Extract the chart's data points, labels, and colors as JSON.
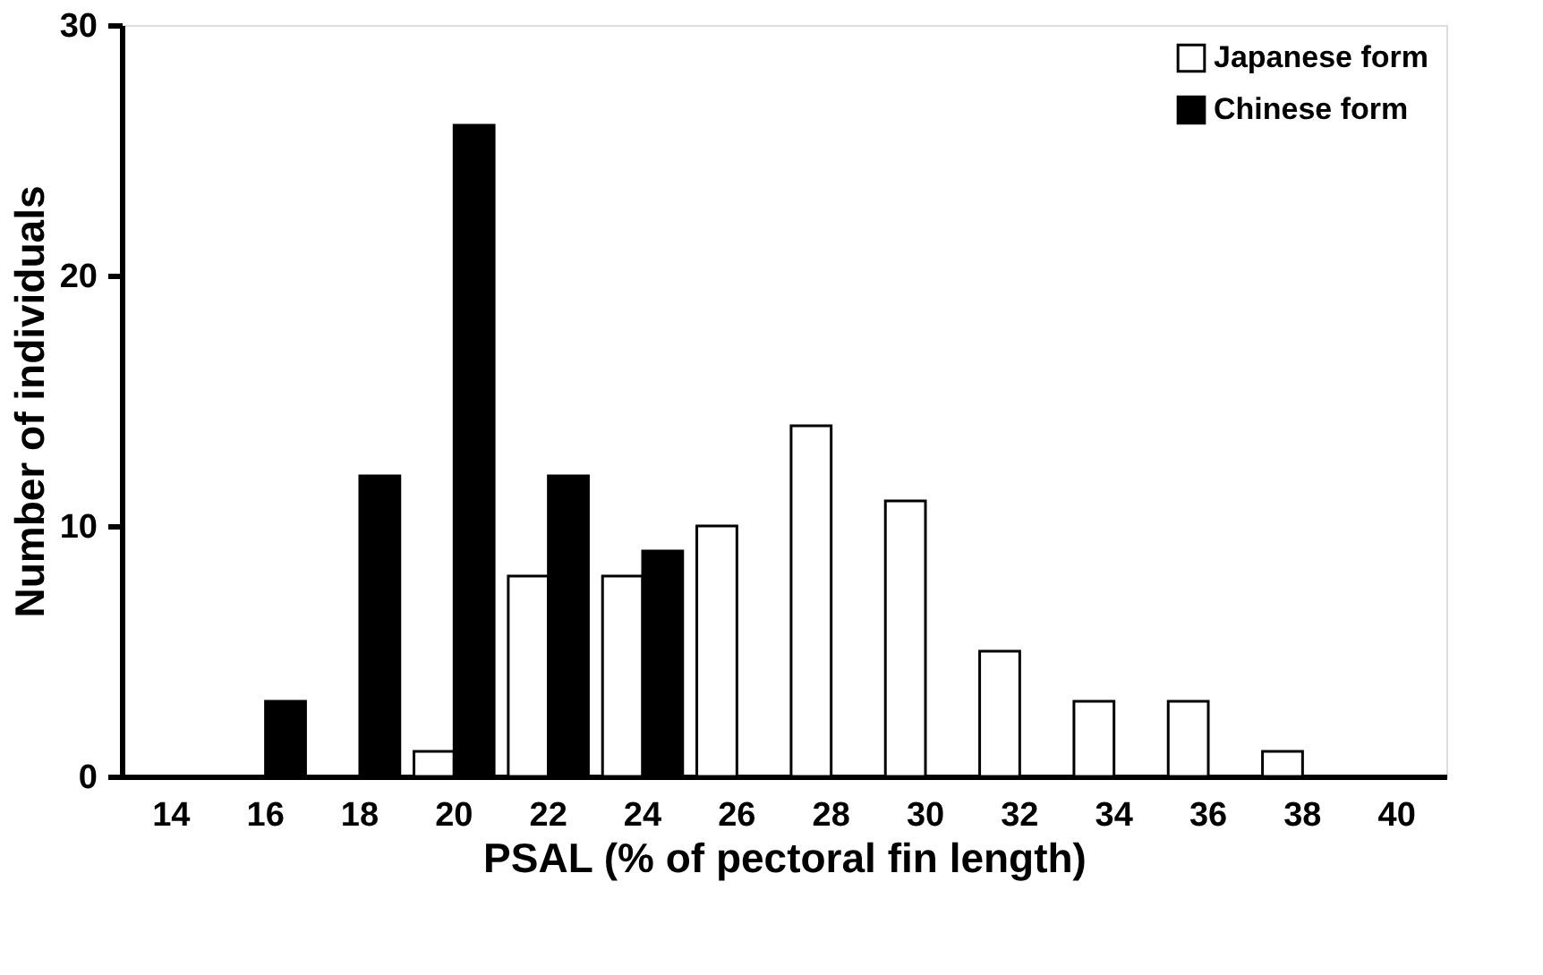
{
  "chart_data": {
    "type": "bar",
    "xlabel": "PSAL (% of pectoral fin length)",
    "ylabel": "Number of individuals",
    "categories": [
      "14",
      "16",
      "18",
      "20",
      "22",
      "24",
      "26",
      "28",
      "30",
      "32",
      "34",
      "36",
      "38",
      "40"
    ],
    "series": [
      {
        "name": "Japanese form",
        "color": "#ffffff",
        "values": [
          null,
          null,
          null,
          1,
          8,
          8,
          10,
          14,
          11,
          5,
          3,
          3,
          1,
          null
        ]
      },
      {
        "name": "Chinese form",
        "color": "#000000",
        "values": [
          null,
          3,
          12,
          26,
          12,
          9,
          null,
          null,
          null,
          null,
          null,
          null,
          null,
          null
        ]
      }
    ],
    "ylim": [
      0,
      30
    ],
    "yticks": [
      0,
      10,
      20,
      30
    ],
    "grid": false,
    "legend": "top right"
  }
}
